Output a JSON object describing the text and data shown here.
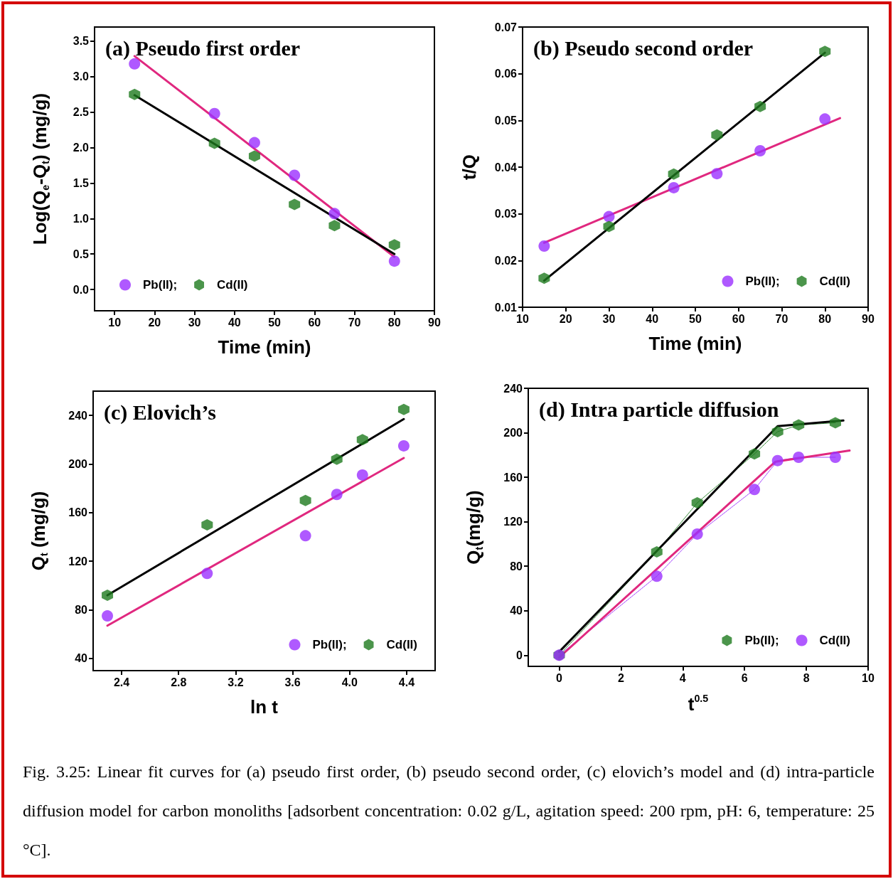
{
  "chart_data": [
    {
      "type": "scatter",
      "title": "(a) Pseudo first order",
      "xlabel": "Time (min)",
      "ylabel": "Log(Q$_{e}$-Q$_{t}$) (mg/g)",
      "xlim": [
        5,
        90
      ],
      "xticks": [
        10,
        20,
        30,
        40,
        50,
        60,
        70,
        80,
        90
      ],
      "ylim": [
        -0.3,
        3.7
      ],
      "yticks": [
        {
          "value": 0,
          "label": "0.0"
        },
        0.5,
        {
          "value": 1,
          "label": "1.0"
        },
        1.5,
        {
          "value": 2,
          "label": "2.0"
        },
        2.5,
        {
          "value": 3,
          "label": "3.0"
        },
        3.5
      ],
      "grid": false,
      "legend": "bottom left",
      "series": [
        {
          "name": "Pb(II);",
          "color": "#9b30ff",
          "marker": "circle",
          "x": [
            15,
            35,
            45,
            55,
            65,
            80
          ],
          "values": [
            3.18,
            2.48,
            2.07,
            1.61,
            1.07,
            0.4
          ]
        },
        {
          "name": "Cd(II)",
          "color": "#1e7b1e",
          "x": [
            15,
            35,
            45,
            55,
            65,
            80
          ],
          "values": [
            2.75,
            2.06,
            1.88,
            1.2,
            0.9,
            0.63
          ]
        },
        {
          "type": "line",
          "color": "#e0287f",
          "marker": "none",
          "line_style": "solid",
          "x": [
            15,
            80
          ],
          "values": [
            3.29,
            0.46
          ]
        },
        {
          "type": "line",
          "color": "#000000",
          "marker": "none",
          "line_style": "solid",
          "x": [
            15,
            80
          ],
          "values": [
            2.74,
            0.5
          ]
        }
      ]
    },
    {
      "type": "scatter",
      "title": "(b) Pseudo second order",
      "xlabel": "Time (min)",
      "ylabel": "t/Q",
      "xlim": [
        10,
        90
      ],
      "xticks": [
        10,
        20,
        30,
        40,
        50,
        60,
        70,
        80,
        90
      ],
      "ylim": [
        0.01,
        0.07
      ],
      "yticks": [
        0.01,
        0.02,
        0.03,
        0.04,
        0.05,
        0.06,
        0.07
      ],
      "grid": false,
      "legend": "bottom right",
      "series": [
        {
          "name": "Pb(II);",
          "color": "#9b30ff",
          "marker": "circle",
          "x": [
            15,
            30,
            45,
            55,
            65,
            80
          ],
          "values": [
            0.0231,
            0.0294,
            0.0356,
            0.0386,
            0.0435,
            0.0503
          ]
        },
        {
          "name": "Cd(II)",
          "color": "#1e7b1e",
          "x": [
            15,
            30,
            45,
            55,
            65,
            80
          ],
          "values": [
            0.0162,
            0.0273,
            0.0385,
            0.0469,
            0.053,
            0.0648
          ]
        },
        {
          "type": "line",
          "color": "#e0287f",
          "marker": "none",
          "line_style": "solid",
          "x": [
            15,
            83.5
          ],
          "values": [
            0.0238,
            0.0505
          ]
        },
        {
          "type": "line",
          "color": "#000000",
          "marker": "none",
          "line_style": "solid",
          "x": [
            15,
            80
          ],
          "values": [
            0.0157,
            0.0645
          ]
        }
      ]
    },
    {
      "type": "scatter",
      "title": "(c) Elovich’s",
      "xlabel": "ln t",
      "ylabel": "Q$_{t}$ (mg/g)",
      "xlim": [
        2.2,
        4.6
      ],
      "xticks": [
        2.4,
        2.8,
        3.2,
        3.6,
        {
          "value": 4,
          "label": "4.0"
        },
        4.4
      ],
      "ylim": [
        30,
        260
      ],
      "yticks": [
        40,
        80,
        120,
        160,
        200,
        240
      ],
      "grid": false,
      "legend": "bottom right",
      "series": [
        {
          "name": "Pb(II);",
          "color": "#9b30ff",
          "marker": "circle",
          "x": [
            2.3,
            3.0,
            3.69,
            3.91,
            4.09,
            4.38
          ],
          "values": [
            75,
            110,
            141,
            175,
            191,
            215
          ]
        },
        {
          "name": "Cd(II)",
          "color": "#1e7b1e",
          "x": [
            2.3,
            3.0,
            3.69,
            3.91,
            4.09,
            4.38
          ],
          "values": [
            92,
            150,
            170,
            204,
            220,
            245
          ]
        },
        {
          "type": "line",
          "color": "#e0287f",
          "marker": "none",
          "line_style": "solid",
          "x": [
            2.3,
            4.38
          ],
          "values": [
            67,
            205
          ]
        },
        {
          "type": "line",
          "color": "#000000",
          "marker": "none",
          "line_style": "solid",
          "x": [
            2.3,
            4.38
          ],
          "values": [
            92,
            237
          ]
        }
      ]
    },
    {
      "type": "line",
      "title": "(d) Intra particle diffusion",
      "xlabel": "t$^{0.5}$",
      "ylabel": "Q$_{t}$(mg/g)",
      "xlim": [
        -1,
        10
      ],
      "xticks": [
        0,
        2,
        4,
        6,
        8,
        10
      ],
      "ylim": [
        -10,
        240
      ],
      "yticks": [
        0,
        40,
        80,
        120,
        160,
        200,
        240
      ],
      "grid": false,
      "legend": "bottom right",
      "annotations": [
        "Fig. 3.25: Linear fit curves for (a) pseudo first order, (b) pseudo second order, (c) elovich’s model and (d) intra-particle diffusion model for carbon monoliths [adsorbent concentration: 0.02 g/L, agitation speed: 200 rpm, pH: 6, temperature: 25 °C]."
      ],
      "series": [
        {
          "color": "#1e7b1e",
          "marker": "none",
          "line_style": "dotted",
          "x": [
            0,
            3.16,
            4.47,
            6.32,
            7.07,
            7.75,
            8.94
          ],
          "values": [
            0,
            93,
            137,
            181,
            201,
            207,
            209
          ]
        },
        {
          "color": "#9b30ff",
          "marker": "none",
          "line_style": "dotted",
          "x": [
            0,
            3.16,
            4.47,
            6.32,
            7.07,
            7.75,
            8.94
          ],
          "values": [
            0,
            71,
            109,
            149,
            175,
            178,
            178
          ]
        },
        {
          "type": "scatter",
          "name": "Pb(II);",
          "color": "#1e7b1e",
          "x": [
            0,
            3.16,
            4.47,
            6.32,
            7.07,
            7.75,
            8.94
          ],
          "values": [
            0,
            93,
            137,
            181,
            201,
            207,
            209
          ]
        },
        {
          "type": "scatter",
          "name": "Cd(II)",
          "color": "#9b30ff",
          "marker": "circle",
          "x": [
            0,
            3.16,
            4.47,
            6.32,
            7.07,
            7.75,
            8.94
          ],
          "values": [
            0,
            71,
            109,
            149,
            175,
            178,
            178
          ]
        },
        {
          "color": "#000000",
          "marker": "none",
          "line_style": "solid",
          "x": [
            0,
            7.07,
            9.2
          ],
          "values": [
            3,
            206,
            211
          ]
        },
        {
          "color": "#e0287f",
          "marker": "none",
          "line_style": "solid",
          "x": [
            0,
            7.0,
            9.4
          ],
          "values": [
            -2,
            174,
            184
          ]
        }
      ]
    }
  ]
}
